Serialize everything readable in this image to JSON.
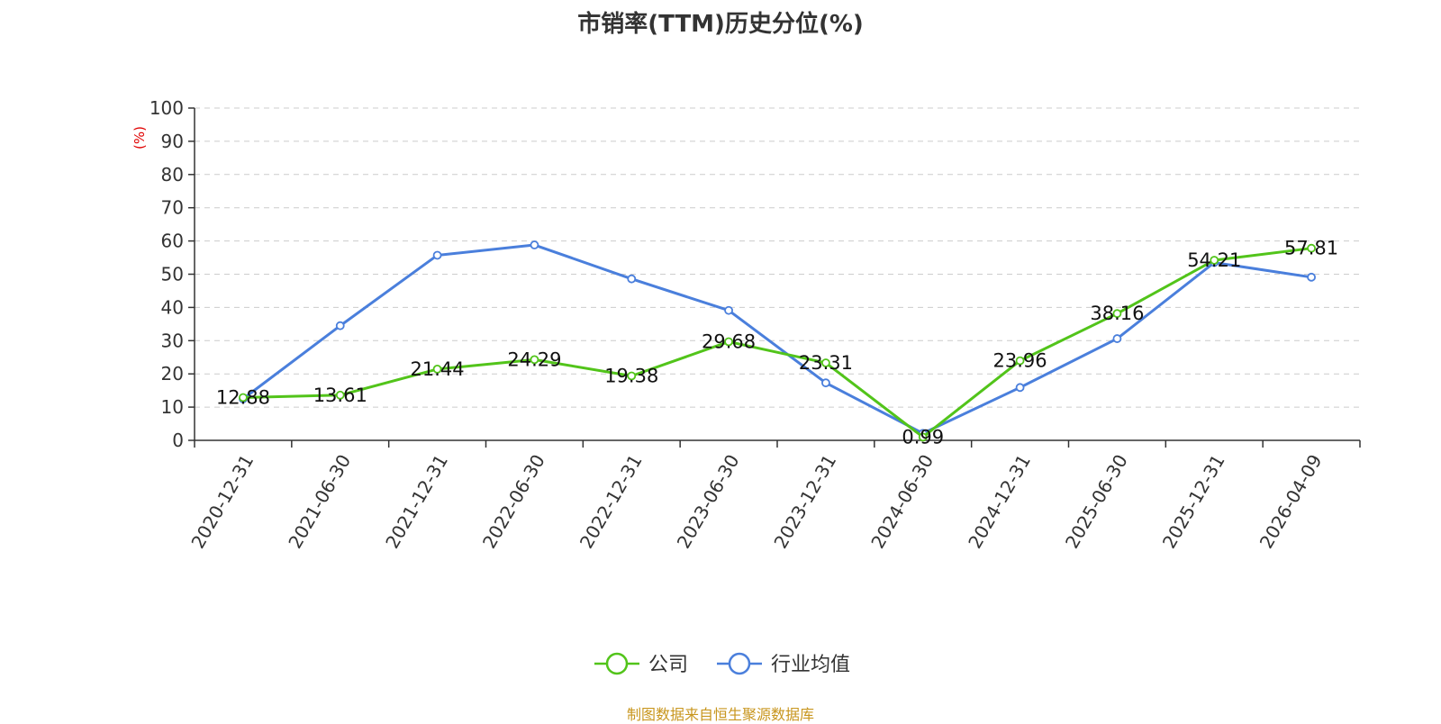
{
  "chart_data": {
    "type": "line",
    "title": "市销率(TTM)历史分位(%)",
    "ylabel": "(%)",
    "xlabel": "",
    "ylim": [
      0,
      100
    ],
    "yticks": [
      0,
      10,
      20,
      30,
      40,
      50,
      60,
      70,
      80,
      90,
      100
    ],
    "grid": "horizontal dashed",
    "legend_position": "bottom",
    "categories": [
      "2020-12-31",
      "2021-06-30",
      "2021-12-31",
      "2022-06-30",
      "2022-12-31",
      "2023-06-30",
      "2023-12-31",
      "2024-06-30",
      "2024-12-31",
      "2025-06-30",
      "2025-12-31",
      "2026-04-09"
    ],
    "series": [
      {
        "name": "公司",
        "color": "#52c41a",
        "values": [
          12.88,
          13.61,
          21.44,
          24.29,
          19.38,
          29.68,
          23.31,
          0.99,
          23.96,
          38.16,
          54.21,
          57.81
        ],
        "labels": [
          "12.88",
          "13.61",
          "21.44",
          "24.29",
          "19.38",
          "29.68",
          "23.31",
          "0.99",
          "23.96",
          "38.16",
          "54.21",
          "57.81"
        ]
      },
      {
        "name": "行业均值",
        "color": "#4a7fdc",
        "values": [
          12.5,
          34.5,
          55.7,
          58.8,
          48.6,
          39.1,
          17.3,
          2.1,
          15.9,
          30.6,
          53.5,
          49.1
        ]
      }
    ]
  },
  "source_note": "制图数据来自恒生聚源数据库"
}
